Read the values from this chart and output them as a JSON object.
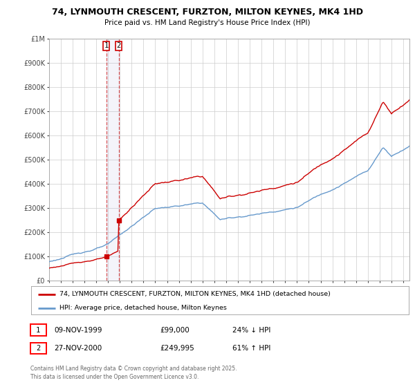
{
  "title": "74, LYNMOUTH CRESCENT, FURZTON, MILTON KEYNES, MK4 1HD",
  "subtitle": "Price paid vs. HM Land Registry's House Price Index (HPI)",
  "bg_color": "#ffffff",
  "plot_bg_color": "#ffffff",
  "grid_color": "#cccccc",
  "red_line_color": "#cc0000",
  "blue_line_color": "#6699cc",
  "purchase1_date_x": 1999.86,
  "purchase1_price": 99000,
  "purchase2_date_x": 2000.91,
  "purchase2_price": 249995,
  "vline1_x": 1999.86,
  "vline2_x": 2000.91,
  "shade_start": 1999.86,
  "shade_end": 2000.91,
  "legend_entries": [
    "74, LYNMOUTH CRESCENT, FURZTON, MILTON KEYNES, MK4 1HD (detached house)",
    "HPI: Average price, detached house, Milton Keynes"
  ],
  "table_rows": [
    [
      "1",
      "09-NOV-1999",
      "£99,000",
      "24% ↓ HPI"
    ],
    [
      "2",
      "27-NOV-2000",
      "£249,995",
      "61% ↑ HPI"
    ]
  ],
  "footer": "Contains HM Land Registry data © Crown copyright and database right 2025.\nThis data is licensed under the Open Government Licence v3.0.",
  "ylim": [
    0,
    1000000
  ],
  "xlim_start": 1995.0,
  "xlim_end": 2025.5,
  "yticks": [
    0,
    100000,
    200000,
    300000,
    400000,
    500000,
    600000,
    700000,
    800000,
    900000,
    1000000
  ],
  "ytick_labels": [
    "£0",
    "£100K",
    "£200K",
    "£300K",
    "£400K",
    "£500K",
    "£600K",
    "£700K",
    "£800K",
    "£900K",
    "£1M"
  ],
  "xtick_years": [
    1995,
    1996,
    1997,
    1998,
    1999,
    2000,
    2001,
    2002,
    2003,
    2004,
    2005,
    2006,
    2007,
    2008,
    2009,
    2010,
    2011,
    2012,
    2013,
    2014,
    2015,
    2016,
    2017,
    2018,
    2019,
    2020,
    2021,
    2022,
    2023,
    2024,
    2025
  ]
}
